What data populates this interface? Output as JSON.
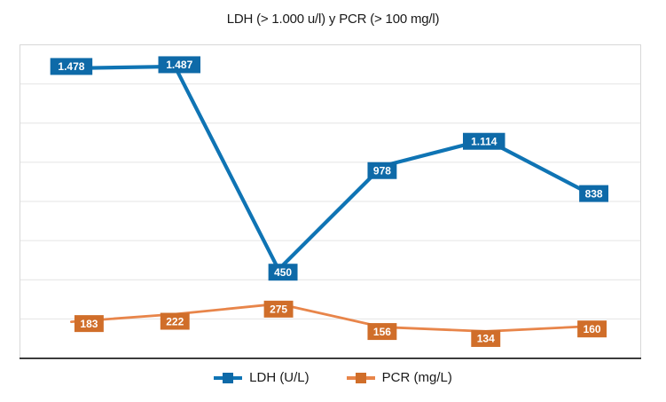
{
  "title": "LDH (> 1.000 u/l) y PCR (> 100 mg/l)",
  "chart_data": {
    "type": "line",
    "title": "LDH (> 1.000 u/l) y PCR (> 100 mg/l)",
    "categories": [
      "",
      "",
      "",
      "",
      "",
      ""
    ],
    "series": [
      {
        "name": "LDH (U/L)",
        "values": [
          1478,
          1487,
          450,
          978,
          1114,
          838
        ],
        "labels": [
          "1.478",
          "1.487",
          "450",
          "978",
          "1.114",
          "838"
        ],
        "line_color": "#0F74B4",
        "label_bg": "#0E6AA8"
      },
      {
        "name": "PCR (mg/L)",
        "values": [
          183,
          222,
          275,
          156,
          134,
          160
        ],
        "labels": [
          "183",
          "222",
          "275",
          "156",
          "134",
          "160"
        ],
        "line_color": "#E8854A",
        "label_bg": "#D06E2A"
      }
    ],
    "ylim": [
      0,
      1600
    ],
    "gridline_step": 200,
    "grid": true,
    "x_axis_labels_visible": false,
    "data_labels_visible": true,
    "legend_position": "bottom",
    "colors": {
      "gridline": "#E4E4E4",
      "plot_border": "#D8D8D8",
      "axis_line": "#000000",
      "title_text": "#1a1a1a"
    }
  }
}
